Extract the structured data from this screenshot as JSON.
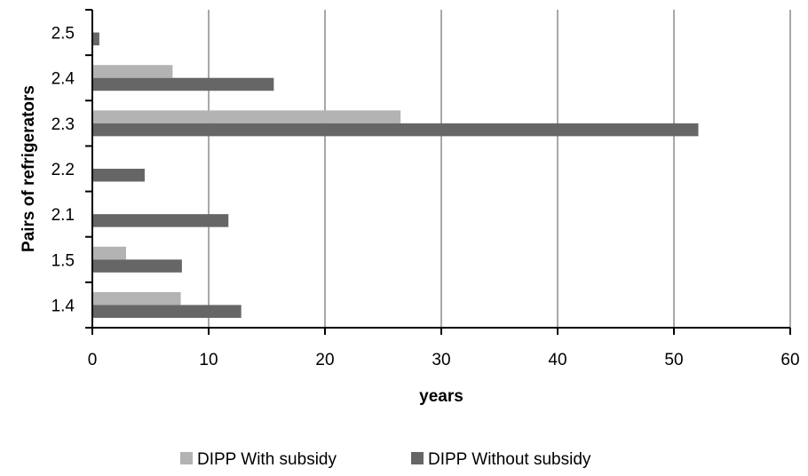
{
  "chart_data": {
    "type": "bar",
    "orientation": "horizontal",
    "categories": [
      "1.4",
      "1.5",
      "2.1",
      "2.2",
      "2.3",
      "2.4",
      "2.5"
    ],
    "series": [
      {
        "name": "DIPP With subsidy",
        "color": "#b3b3b3",
        "values": [
          7.6,
          2.9,
          0,
          0,
          26.5,
          6.9,
          0
        ]
      },
      {
        "name": "DIPP Without subsidy",
        "color": "#666666",
        "values": [
          12.8,
          7.7,
          11.7,
          4.5,
          52.1,
          15.6,
          0.6
        ]
      }
    ],
    "xlabel": "years",
    "ylabel": "Pairs of refrigerators",
    "xlim": [
      0,
      60
    ],
    "xticks": [
      "0",
      "10",
      "20",
      "30",
      "40",
      "50",
      "60"
    ],
    "grid": "vertical",
    "legend_position": "bottom"
  }
}
